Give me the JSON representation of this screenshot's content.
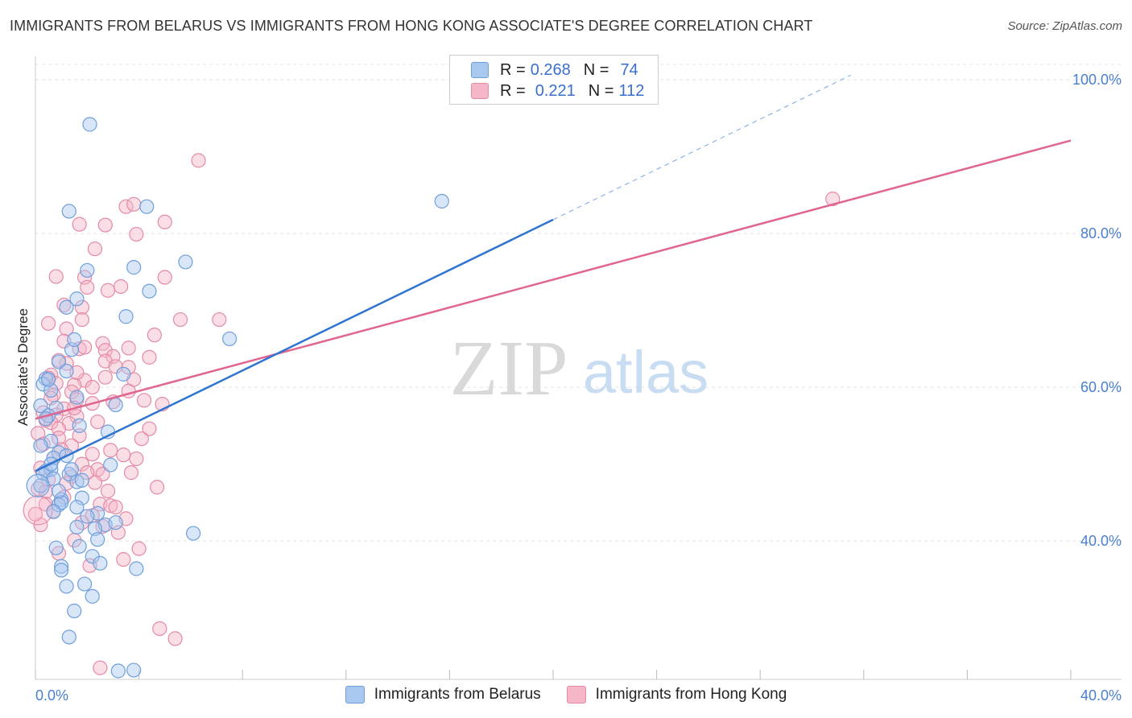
{
  "header": {
    "title": "IMMIGRANTS FROM BELARUS VS IMMIGRANTS FROM HONG KONG ASSOCIATE'S DEGREE CORRELATION CHART",
    "source": "Source: ZipAtlas.com"
  },
  "watermark": {
    "zip": "ZIP",
    "atlas": "atlas"
  },
  "legend": {
    "rows": [
      {
        "r_label": "R =",
        "r_value": "0.268",
        "n_label": "N =",
        "n_value": "74",
        "color": "#a9c8f0"
      },
      {
        "r_label": "R =",
        "r_value": "0.221",
        "n_label": "N =",
        "n_value": "112",
        "color": "#f5b6c8"
      }
    ]
  },
  "bottom_legend": {
    "items": [
      {
        "label": "Immigrants from Belarus",
        "color": "#a9c8f0"
      },
      {
        "label": "Immigrants from Hong Kong",
        "color": "#f5b6c8"
      }
    ]
  },
  "colors": {
    "blue_fill": "#a9c8f0",
    "blue_line": "#2f74d0",
    "pink_fill": "#f5b6c8",
    "pink_line": "#e06690"
  },
  "chart_data": {
    "type": "scatter",
    "title": "IMMIGRANTS FROM BELARUS VS IMMIGRANTS FROM HONG KONG ASSOCIATE'S DEGREE CORRELATION CHART",
    "xlabel": "",
    "ylabel": "Associate's Degree",
    "xlim": [
      0,
      40
    ],
    "ylim": [
      22,
      102
    ],
    "x_tick_labels": [
      "0.0%",
      "40.0%"
    ],
    "y_ticks": [
      40,
      60,
      80,
      100
    ],
    "y_tick_labels": [
      "40.0%",
      "60.0%",
      "80.0%",
      "100.0%"
    ],
    "grid": true,
    "series": [
      {
        "name": "Immigrants from Belarus",
        "R": 0.268,
        "N": 74,
        "trend": {
          "x0": 0,
          "y0": 49.1,
          "x1": 20,
          "y1": 81.8,
          "x_dashed_end": 31.5,
          "y_dashed_end": 100.6
        },
        "points": [
          [
            2.1,
            94.2
          ],
          [
            1.3,
            82.9
          ],
          [
            4.3,
            83.5
          ],
          [
            5.8,
            76.3
          ],
          [
            3.8,
            75.6
          ],
          [
            2.0,
            75.2
          ],
          [
            15.7,
            84.2
          ],
          [
            4.4,
            72.5
          ],
          [
            1.6,
            71.5
          ],
          [
            1.2,
            70.4
          ],
          [
            3.5,
            69.2
          ],
          [
            7.5,
            66.3
          ],
          [
            1.4,
            64.9
          ],
          [
            1.5,
            66.2
          ],
          [
            0.9,
            63.3
          ],
          [
            1.2,
            62.1
          ],
          [
            3.4,
            61.7
          ],
          [
            0.4,
            61.1
          ],
          [
            0.3,
            60.4
          ],
          [
            0.6,
            59.6
          ],
          [
            0.2,
            57.6
          ],
          [
            0.8,
            57.3
          ],
          [
            3.1,
            57.7
          ],
          [
            1.6,
            58.7
          ],
          [
            0.5,
            56.3
          ],
          [
            1.7,
            55.0
          ],
          [
            2.8,
            54.2
          ],
          [
            0.6,
            53.0
          ],
          [
            0.2,
            52.4
          ],
          [
            0.9,
            51.5
          ],
          [
            0.7,
            50.8
          ],
          [
            1.2,
            51.1
          ],
          [
            2.9,
            49.9
          ],
          [
            0.4,
            49.1
          ],
          [
            0.6,
            49.3
          ],
          [
            0.3,
            48.8
          ],
          [
            1.3,
            48.7
          ],
          [
            0.7,
            48.1
          ],
          [
            1.6,
            47.7
          ],
          [
            1.8,
            47.9
          ],
          [
            0.2,
            47.2
          ],
          [
            1.0,
            45.4
          ],
          [
            1.8,
            45.6
          ],
          [
            0.9,
            44.7
          ],
          [
            1.0,
            45.0
          ],
          [
            1.6,
            44.4
          ],
          [
            0.7,
            43.8
          ],
          [
            2.4,
            43.6
          ],
          [
            2.7,
            42.1
          ],
          [
            3.1,
            42.4
          ],
          [
            1.6,
            41.8
          ],
          [
            2.3,
            41.6
          ],
          [
            6.1,
            41.0
          ],
          [
            2.4,
            40.2
          ],
          [
            1.7,
            39.3
          ],
          [
            0.8,
            39.1
          ],
          [
            2.2,
            38.0
          ],
          [
            2.5,
            37.1
          ],
          [
            1.0,
            36.7
          ],
          [
            3.9,
            36.4
          ],
          [
            1.0,
            36.2
          ],
          [
            1.9,
            34.4
          ],
          [
            1.2,
            34.1
          ],
          [
            2.2,
            32.8
          ],
          [
            1.5,
            30.9
          ],
          [
            1.3,
            27.5
          ],
          [
            3.2,
            23.1
          ],
          [
            3.8,
            23.2
          ],
          [
            0.5,
            61.0
          ],
          [
            0.4,
            55.9
          ],
          [
            0.6,
            50.0
          ],
          [
            0.9,
            46.5
          ],
          [
            2.0,
            43.2
          ],
          [
            1.4,
            49.3
          ]
        ]
      },
      {
        "name": "Immigrants from Hong Kong",
        "R": 0.221,
        "N": 112,
        "trend": {
          "x0": 0,
          "y0": 55.9,
          "x1": 40,
          "y1": 92.1
        },
        "points": [
          [
            6.3,
            89.5
          ],
          [
            30.8,
            84.5
          ],
          [
            3.5,
            83.5
          ],
          [
            3.8,
            83.8
          ],
          [
            5.0,
            81.5
          ],
          [
            1.7,
            81.2
          ],
          [
            2.7,
            81.1
          ],
          [
            3.9,
            79.9
          ],
          [
            2.3,
            78.0
          ],
          [
            0.8,
            74.4
          ],
          [
            5.0,
            74.3
          ],
          [
            1.9,
            74.3
          ],
          [
            2.0,
            73.0
          ],
          [
            3.3,
            73.1
          ],
          [
            2.8,
            72.6
          ],
          [
            1.1,
            70.7
          ],
          [
            1.8,
            70.4
          ],
          [
            5.6,
            68.8
          ],
          [
            7.1,
            68.8
          ],
          [
            0.5,
            68.3
          ],
          [
            1.8,
            68.8
          ],
          [
            1.2,
            67.6
          ],
          [
            4.6,
            66.8
          ],
          [
            2.6,
            65.7
          ],
          [
            1.7,
            65.0
          ],
          [
            3.6,
            65.1
          ],
          [
            2.7,
            64.8
          ],
          [
            3.0,
            64.0
          ],
          [
            4.4,
            63.9
          ],
          [
            2.7,
            63.4
          ],
          [
            1.2,
            63.1
          ],
          [
            3.1,
            62.7
          ],
          [
            0.6,
            61.6
          ],
          [
            2.7,
            61.3
          ],
          [
            3.8,
            61.0
          ],
          [
            1.9,
            60.9
          ],
          [
            0.5,
            61.2
          ],
          [
            0.8,
            60.5
          ],
          [
            1.5,
            60.3
          ],
          [
            2.2,
            60.0
          ],
          [
            3.6,
            59.5
          ],
          [
            1.4,
            59.4
          ],
          [
            0.7,
            59.0
          ],
          [
            1.6,
            58.4
          ],
          [
            2.2,
            57.9
          ],
          [
            4.9,
            57.8
          ],
          [
            1.1,
            57.2
          ],
          [
            0.3,
            56.7
          ],
          [
            0.8,
            56.4
          ],
          [
            1.6,
            56.2
          ],
          [
            0.4,
            55.7
          ],
          [
            0.6,
            55.4
          ],
          [
            1.3,
            55.3
          ],
          [
            0.9,
            54.6
          ],
          [
            4.4,
            54.6
          ],
          [
            0.1,
            54.0
          ],
          [
            1.7,
            53.7
          ],
          [
            0.9,
            53.4
          ],
          [
            4.1,
            53.3
          ],
          [
            1.4,
            52.4
          ],
          [
            2.9,
            51.8
          ],
          [
            2.2,
            51.3
          ],
          [
            3.4,
            51.2
          ],
          [
            0.7,
            50.8
          ],
          [
            3.9,
            50.7
          ],
          [
            1.8,
            50.0
          ],
          [
            0.2,
            49.5
          ],
          [
            2.4,
            49.3
          ],
          [
            2.6,
            48.7
          ],
          [
            1.4,
            48.4
          ],
          [
            3.7,
            48.9
          ],
          [
            0.5,
            48.0
          ],
          [
            1.2,
            47.5
          ],
          [
            2.3,
            47.6
          ],
          [
            4.7,
            47.0
          ],
          [
            0.1,
            46.8
          ],
          [
            0.4,
            46.4
          ],
          [
            1.1,
            45.7
          ],
          [
            2.5,
            44.8
          ],
          [
            2.9,
            44.6
          ],
          [
            3.1,
            44.4
          ],
          [
            0.7,
            43.9
          ],
          [
            2.2,
            43.3
          ],
          [
            3.5,
            42.9
          ],
          [
            1.8,
            42.4
          ],
          [
            2.6,
            41.9
          ],
          [
            0.2,
            42.1
          ],
          [
            3.2,
            41.1
          ],
          [
            1.5,
            40.1
          ],
          [
            4.0,
            39.0
          ],
          [
            0.9,
            38.4
          ],
          [
            3.4,
            37.6
          ],
          [
            2.1,
            36.8
          ],
          [
            4.8,
            28.6
          ],
          [
            5.4,
            27.3
          ],
          [
            2.5,
            23.5
          ],
          [
            0.0,
            43.5
          ],
          [
            0.3,
            52.6
          ],
          [
            1.5,
            57.3
          ],
          [
            0.9,
            63.5
          ],
          [
            1.9,
            65.2
          ],
          [
            2.4,
            55.5
          ],
          [
            3.0,
            58.1
          ],
          [
            1.0,
            51.9
          ],
          [
            3.6,
            62.6
          ],
          [
            0.4,
            44.8
          ],
          [
            2.0,
            48.9
          ],
          [
            4.2,
            58.3
          ],
          [
            1.6,
            61.9
          ],
          [
            0.6,
            58.6
          ],
          [
            2.8,
            46.5
          ],
          [
            1.1,
            66.0
          ]
        ]
      }
    ]
  }
}
